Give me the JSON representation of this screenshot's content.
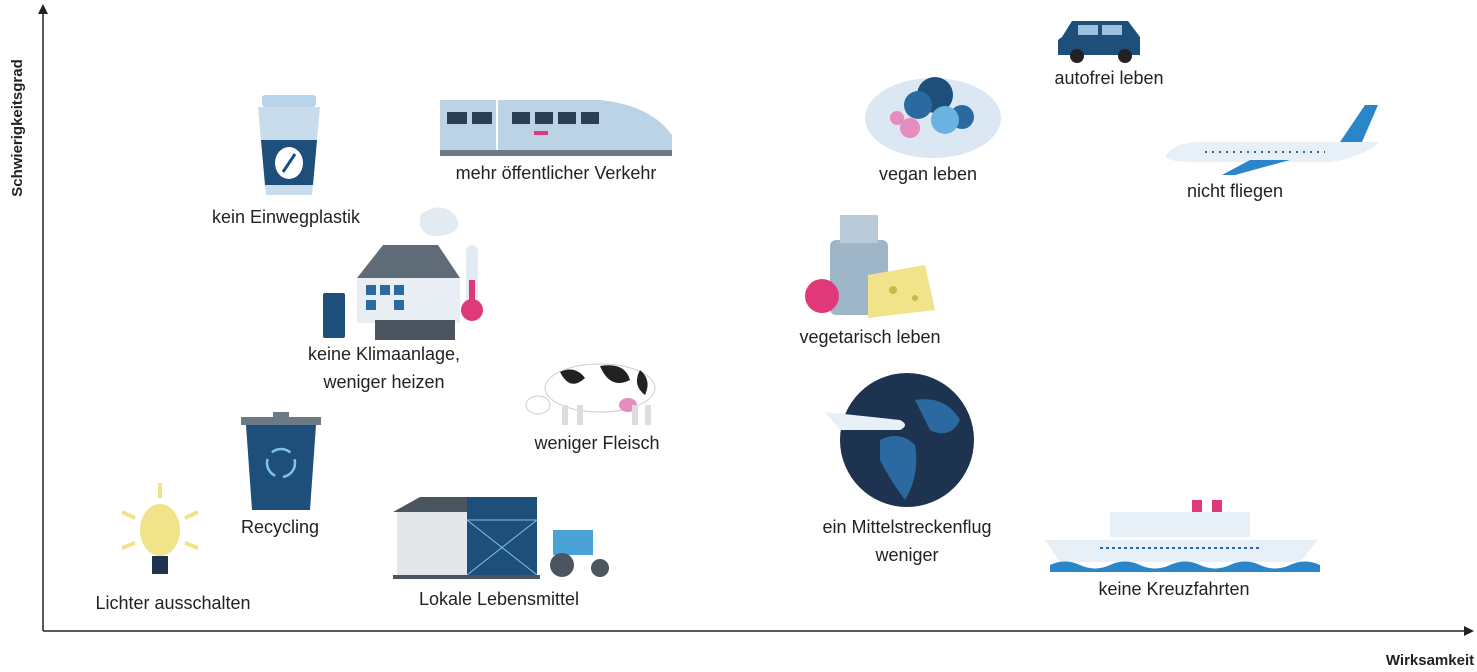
{
  "axes": {
    "y_label": "Schwierigkeitsgrad",
    "x_label": "Wirksamkeit"
  },
  "items": [
    {
      "lines": [
        "kein Einwegplastik"
      ]
    },
    {
      "lines": [
        "mehr öffentlicher Verkehr"
      ]
    },
    {
      "lines": [
        "vegan leben"
      ]
    },
    {
      "lines": [
        "autofrei leben"
      ]
    },
    {
      "lines": [
        "nicht fliegen"
      ]
    },
    {
      "lines": [
        "keine Klimaanlage,",
        "weniger heizen"
      ]
    },
    {
      "lines": [
        "vegetarisch leben"
      ]
    },
    {
      "lines": [
        "weniger Fleisch"
      ]
    },
    {
      "lines": [
        "Recycling"
      ]
    },
    {
      "lines": [
        "ein Mittelstreckenflug",
        "weniger"
      ]
    },
    {
      "lines": [
        "keine Kreuzfahrten"
      ]
    },
    {
      "lines": [
        "Lichter ausschalten"
      ]
    },
    {
      "lines": [
        "Lokale Lebensmittel"
      ]
    }
  ]
}
